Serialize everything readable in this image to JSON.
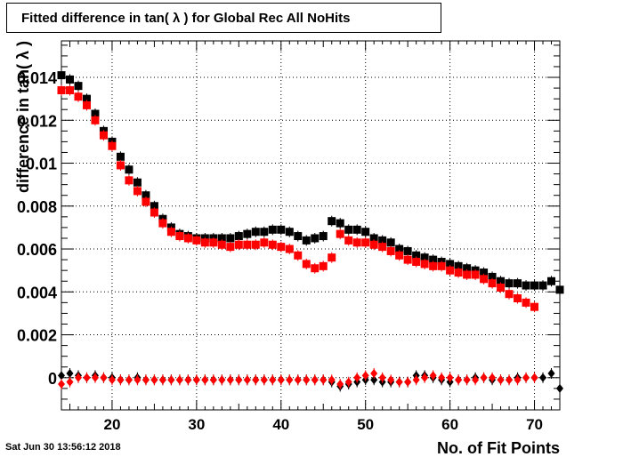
{
  "title": "Fitted difference in tan( λ ) for Global Rec All NoHits",
  "footer": {
    "timestamp": "Sat Jun 30 13:56:12 2018"
  },
  "colors": {
    "black_series": "#000000",
    "red_series": "#ff0000",
    "grid": "#000000"
  },
  "chart_data": {
    "type": "scatter",
    "title": "Fitted difference in tan( λ ) for Global Rec All NoHits",
    "xlabel": "No. of Fit Points",
    "ylabel": "difference in tan( λ )",
    "xlim": [
      14,
      73
    ],
    "ylim": [
      -0.0015,
      0.0157
    ],
    "grid": true,
    "x_ticks": [
      20,
      30,
      40,
      50,
      60,
      70
    ],
    "x_tick_labels": [
      "20",
      "30",
      "40",
      "50",
      "60",
      "70"
    ],
    "y_ticks": [
      0,
      0.002,
      0.004,
      0.006,
      0.008,
      0.01,
      0.012,
      0.014
    ],
    "y_tick_labels": [
      "0",
      "0.002",
      "0.004",
      "0.006",
      "0.008",
      "0.01",
      "0.012",
      "0.014"
    ],
    "series": [
      {
        "marker": "square",
        "color": "#000000",
        "x": [
          14,
          15,
          16,
          17,
          18,
          19,
          20,
          21,
          22,
          23,
          24,
          25,
          26,
          27,
          28,
          29,
          30,
          31,
          32,
          33,
          34,
          35,
          36,
          37,
          38,
          39,
          40,
          41,
          42,
          43,
          44,
          45,
          46,
          47,
          48,
          49,
          50,
          51,
          52,
          53,
          54,
          55,
          56,
          57,
          58,
          59,
          60,
          61,
          62,
          63,
          64,
          65,
          66,
          67,
          68,
          69,
          70,
          71,
          72,
          73
        ],
        "y": [
          0.0141,
          0.0139,
          0.0136,
          0.013,
          0.0123,
          0.0115,
          0.011,
          0.0103,
          0.0097,
          0.0091,
          0.0085,
          0.008,
          0.0074,
          0.007,
          0.0067,
          0.0066,
          0.0065,
          0.0065,
          0.0065,
          0.0065,
          0.0065,
          0.0066,
          0.0067,
          0.0068,
          0.0068,
          0.0069,
          0.0069,
          0.0068,
          0.0066,
          0.0064,
          0.0065,
          0.0066,
          0.0073,
          0.0072,
          0.0069,
          0.0069,
          0.0068,
          0.0065,
          0.0064,
          0.0063,
          0.006,
          0.0059,
          0.0057,
          0.0056,
          0.0055,
          0.0054,
          0.0053,
          0.0052,
          0.0051,
          0.005,
          0.0049,
          0.0047,
          0.0045,
          0.0044,
          0.0044,
          0.0043,
          0.0043,
          0.0043,
          0.0045,
          0.0041
        ]
      },
      {
        "marker": "square",
        "color": "#ff0000",
        "x": [
          14,
          15,
          16,
          17,
          18,
          19,
          20,
          21,
          22,
          23,
          24,
          25,
          26,
          27,
          28,
          29,
          30,
          31,
          32,
          33,
          34,
          35,
          36,
          37,
          38,
          39,
          40,
          41,
          42,
          43,
          44,
          45,
          46,
          47,
          48,
          49,
          50,
          51,
          52,
          53,
          54,
          55,
          56,
          57,
          58,
          59,
          60,
          61,
          62,
          63,
          64,
          65,
          66,
          67,
          68,
          69,
          70
        ],
        "y": [
          0.0134,
          0.0134,
          0.0131,
          0.0127,
          0.012,
          0.0113,
          0.0108,
          0.0099,
          0.0092,
          0.0087,
          0.0082,
          0.0077,
          0.0072,
          0.0068,
          0.0066,
          0.0065,
          0.0064,
          0.0063,
          0.0063,
          0.0062,
          0.0061,
          0.0062,
          0.0062,
          0.0062,
          0.0063,
          0.0062,
          0.0061,
          0.006,
          0.0057,
          0.0053,
          0.0051,
          0.0052,
          0.0056,
          0.0067,
          0.0064,
          0.0063,
          0.0063,
          0.0062,
          0.0061,
          0.0059,
          0.0057,
          0.0055,
          0.0054,
          0.0053,
          0.0052,
          0.0052,
          0.005,
          0.0049,
          0.0048,
          0.0048,
          0.0046,
          0.0044,
          0.0042,
          0.0039,
          0.0037,
          0.0035,
          0.0033
        ]
      },
      {
        "marker": "diamond",
        "color": "#000000",
        "x": [
          14,
          15,
          16,
          17,
          18,
          19,
          20,
          21,
          22,
          23,
          24,
          25,
          26,
          27,
          28,
          29,
          30,
          31,
          32,
          33,
          34,
          35,
          36,
          37,
          38,
          39,
          40,
          41,
          42,
          43,
          44,
          45,
          46,
          47,
          48,
          49,
          50,
          51,
          52,
          53,
          54,
          55,
          56,
          57,
          58,
          59,
          60,
          61,
          62,
          63,
          64,
          65,
          66,
          67,
          68,
          69,
          70,
          71,
          72,
          73
        ],
        "y": [
          0.0001,
          0.0002,
          0.0001,
          0,
          0.0001,
          0,
          0,
          -0.0001,
          -0.0001,
          0,
          -0.0001,
          -0.0001,
          -0.0001,
          -0.0001,
          -0.0001,
          -0.0001,
          -0.0001,
          -0.0001,
          -0.0001,
          -0.0001,
          -0.0001,
          -0.0001,
          -0.0001,
          -0.0001,
          -0.0001,
          -0.0001,
          -0.0001,
          -0.0001,
          -0.0001,
          -0.0001,
          -0.0001,
          -0.0001,
          -0.0002,
          -0.0004,
          -0.0003,
          -0.0002,
          -0.0001,
          -0.0001,
          -0.0002,
          -0.0002,
          -0.0002,
          -0.0002,
          0.0001,
          0.0001,
          0,
          -0.0001,
          -0.0002,
          -0.0001,
          -0.0001,
          0,
          0,
          -0.0001,
          -0.0001,
          -0.0001,
          0,
          0,
          0,
          0,
          0.0002,
          -0.0005
        ]
      },
      {
        "marker": "diamond",
        "color": "#ff0000",
        "x": [
          14,
          15,
          16,
          17,
          18,
          19,
          20,
          21,
          22,
          23,
          24,
          25,
          26,
          27,
          28,
          29,
          30,
          31,
          32,
          33,
          34,
          35,
          36,
          37,
          38,
          39,
          40,
          41,
          42,
          43,
          44,
          45,
          46,
          47,
          48,
          49,
          50,
          51,
          52,
          53,
          54,
          55,
          56,
          57,
          58,
          59,
          60,
          61,
          62,
          63,
          64,
          65,
          66,
          67,
          68,
          69,
          70
        ],
        "y": [
          -0.0003,
          -0.0002,
          0,
          0,
          0,
          0,
          -0.0001,
          -0.0001,
          -0.0001,
          -0.0001,
          -0.0001,
          -0.0001,
          -0.0001,
          -0.0001,
          -0.0001,
          -0.0001,
          -0.0001,
          -0.0001,
          -0.0001,
          -0.0001,
          -0.0001,
          -0.0001,
          -0.0001,
          -0.0001,
          -0.0001,
          -0.0001,
          -0.0001,
          -0.0001,
          -0.0001,
          -0.0001,
          -0.0001,
          -0.0001,
          -0.0001,
          -0.0003,
          -0.0002,
          0,
          0.0001,
          0.0002,
          0,
          -0.0001,
          -0.0002,
          -0.0002,
          -0.0001,
          0,
          0.0001,
          0,
          0,
          -0.0001,
          -0.0001,
          -0.0001,
          0,
          0,
          -0.0001,
          -0.0001,
          -0.0001,
          0,
          0
        ]
      }
    ]
  }
}
